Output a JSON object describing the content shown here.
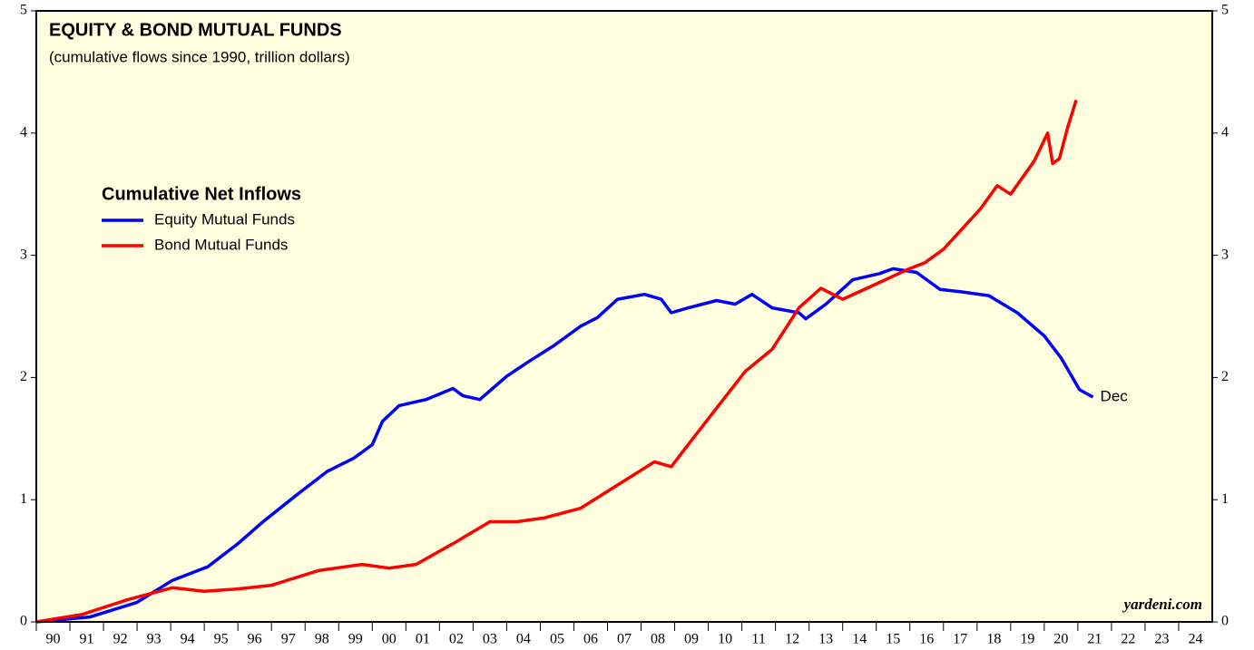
{
  "chart_data": {
    "type": "line",
    "title": "EQUITY & BOND MUTUAL FUNDS",
    "subtitle": "(cumulative flows since 1990, trillion dollars)",
    "legend_title": "Cumulative Net Inflows",
    "annotation": "Dec",
    "source": "yardeni.com",
    "xlim": [
      1990,
      2025
    ],
    "ylim": [
      0,
      5
    ],
    "yticks": [
      0,
      1,
      2,
      3,
      4,
      5
    ],
    "xticks": [
      {
        "value": 1990,
        "label": "90"
      },
      {
        "value": 1991,
        "label": "91"
      },
      {
        "value": 1992,
        "label": "92"
      },
      {
        "value": 1993,
        "label": "93"
      },
      {
        "value": 1994,
        "label": "94"
      },
      {
        "value": 1995,
        "label": "95"
      },
      {
        "value": 1996,
        "label": "96"
      },
      {
        "value": 1997,
        "label": "97"
      },
      {
        "value": 1998,
        "label": "98"
      },
      {
        "value": 1999,
        "label": "99"
      },
      {
        "value": 2000,
        "label": "00"
      },
      {
        "value": 2001,
        "label": "01"
      },
      {
        "value": 2002,
        "label": "02"
      },
      {
        "value": 2003,
        "label": "03"
      },
      {
        "value": 2004,
        "label": "04"
      },
      {
        "value": 2005,
        "label": "05"
      },
      {
        "value": 2006,
        "label": "06"
      },
      {
        "value": 2007,
        "label": "07"
      },
      {
        "value": 2008,
        "label": "08"
      },
      {
        "value": 2009,
        "label": "09"
      },
      {
        "value": 2010,
        "label": "10"
      },
      {
        "value": 2011,
        "label": "11"
      },
      {
        "value": 2012,
        "label": "12"
      },
      {
        "value": 2013,
        "label": "13"
      },
      {
        "value": 2014,
        "label": "14"
      },
      {
        "value": 2015,
        "label": "15"
      },
      {
        "value": 2016,
        "label": "16"
      },
      {
        "value": 2017,
        "label": "17"
      },
      {
        "value": 2018,
        "label": "18"
      },
      {
        "value": 2019,
        "label": "19"
      },
      {
        "value": 2020,
        "label": "20"
      },
      {
        "value": 2021,
        "label": "21"
      },
      {
        "value": 2022,
        "label": "22"
      },
      {
        "value": 2023,
        "label": "23"
      },
      {
        "value": 2024,
        "label": "24"
      }
    ],
    "series": [
      {
        "name": "Equity Mutual Funds",
        "color": "#0000ff",
        "x": [
          1990,
          1991.6,
          1993.0,
          1994.05,
          1995.1,
          1996.0,
          1996.75,
          1997.8,
          1998.65,
          1999.45,
          2000.0,
          2000.3,
          2000.8,
          2001.6,
          2002.4,
          2002.7,
          2003.2,
          2004.0,
          2004.6,
          2005.4,
          2006.2,
          2006.7,
          2007.3,
          2008.1,
          2008.6,
          2008.9,
          2009.4,
          2010.25,
          2010.8,
          2011.3,
          2011.9,
          2012.7,
          2012.9,
          2013.5,
          2014.3,
          2015.1,
          2015.5,
          2016.2,
          2016.9,
          2017.55,
          2018.35,
          2019.2,
          2020.0,
          2020.5,
          2021.05,
          2021.45
        ],
        "values": [
          0,
          0.04,
          0.16,
          0.34,
          0.45,
          0.64,
          0.82,
          1.05,
          1.23,
          1.34,
          1.45,
          1.64,
          1.77,
          1.82,
          1.91,
          1.85,
          1.82,
          2.01,
          2.12,
          2.26,
          2.42,
          2.49,
          2.64,
          2.68,
          2.64,
          2.53,
          2.57,
          2.63,
          2.6,
          2.68,
          2.57,
          2.53,
          2.48,
          2.6,
          2.8,
          2.85,
          2.89,
          2.86,
          2.72,
          2.7,
          2.67,
          2.53,
          2.34,
          2.16,
          1.9,
          1.84
        ]
      },
      {
        "name": "Bond Mutual Funds",
        "color": "#ff0000",
        "x": [
          1990,
          1991.35,
          1992.7,
          1994.05,
          1995.0,
          1996.0,
          1997.0,
          1998.4,
          1999.7,
          2000.5,
          2001.3,
          2002.4,
          2003.5,
          2004.3,
          2005.1,
          2006.2,
          2007.3,
          2008.4,
          2008.9,
          2009.4,
          2010.25,
          2011.1,
          2011.9,
          2012.7,
          2013.35,
          2014.0,
          2014.8,
          2015.9,
          2016.45,
          2017.0,
          2018.1,
          2018.6,
          2019.0,
          2019.7,
          2020.1,
          2020.25,
          2020.45,
          2020.7,
          2020.95
        ],
        "values": [
          0,
          0.06,
          0.18,
          0.28,
          0.25,
          0.27,
          0.3,
          0.42,
          0.47,
          0.44,
          0.47,
          0.64,
          0.82,
          0.82,
          0.85,
          0.93,
          1.12,
          1.31,
          1.27,
          1.45,
          1.75,
          2.05,
          2.23,
          2.57,
          2.73,
          2.64,
          2.74,
          2.88,
          2.94,
          3.05,
          3.38,
          3.57,
          3.5,
          3.77,
          4.0,
          3.75,
          3.79,
          4.05,
          4.27
        ]
      }
    ]
  }
}
